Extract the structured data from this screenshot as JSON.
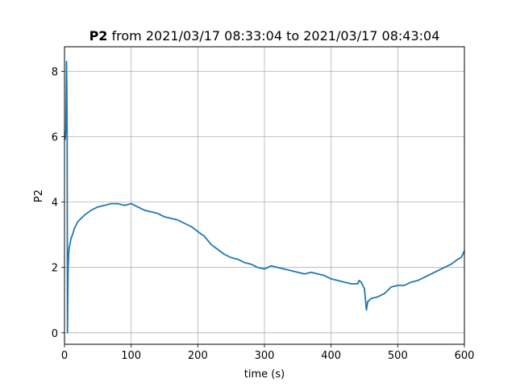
{
  "chart_data": {
    "type": "line",
    "title_bold": "P2",
    "title_rest": " from 2021/03/17 08:33:04 to 2021/03/17 08:43:04",
    "xlabel": "time (s)",
    "ylabel": "P2",
    "xlim": [
      0,
      600
    ],
    "ylim": [
      -0.35,
      8.75
    ],
    "xticks": [
      0,
      100,
      200,
      300,
      400,
      500,
      600
    ],
    "yticks": [
      0,
      2,
      4,
      6,
      8
    ],
    "grid": true,
    "line_color": "#1f77b4",
    "series": [
      {
        "x": [
          1,
          2,
          3,
          3.5,
          4,
          4.5,
          5,
          5.5,
          6,
          6.5,
          7,
          8,
          10,
          12,
          15,
          20,
          25,
          30,
          40,
          50,
          60,
          70,
          80,
          90,
          100,
          110,
          120,
          130,
          140,
          150,
          160,
          170,
          180,
          190,
          200,
          210,
          220,
          230,
          240,
          250,
          260,
          270,
          280,
          290,
          300,
          310,
          320,
          330,
          340,
          350,
          360,
          370,
          380,
          390,
          400,
          410,
          420,
          430,
          440,
          442,
          445,
          450,
          453,
          455,
          460,
          470,
          480,
          490,
          500,
          510,
          520,
          530,
          540,
          550,
          560,
          570,
          580,
          590,
          595,
          600
        ],
        "y": [
          5.9,
          6.2,
          8.3,
          7.5,
          6.0,
          0.0,
          1.2,
          2.0,
          2.3,
          2.5,
          2.6,
          2.7,
          2.9,
          3.0,
          3.2,
          3.4,
          3.5,
          3.6,
          3.75,
          3.85,
          3.9,
          3.95,
          3.95,
          3.9,
          3.95,
          3.85,
          3.75,
          3.7,
          3.65,
          3.55,
          3.5,
          3.45,
          3.35,
          3.25,
          3.1,
          2.95,
          2.7,
          2.55,
          2.4,
          2.3,
          2.25,
          2.15,
          2.1,
          2.0,
          1.95,
          2.05,
          2.0,
          1.95,
          1.9,
          1.85,
          1.8,
          1.85,
          1.8,
          1.75,
          1.65,
          1.6,
          1.55,
          1.5,
          1.5,
          1.6,
          1.55,
          1.35,
          0.7,
          0.95,
          1.05,
          1.1,
          1.2,
          1.4,
          1.45,
          1.45,
          1.55,
          1.6,
          1.7,
          1.8,
          1.9,
          2.0,
          2.1,
          2.25,
          2.3,
          2.5
        ]
      }
    ]
  }
}
